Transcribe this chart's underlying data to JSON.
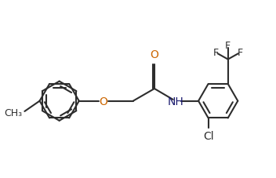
{
  "bg_color": "#ffffff",
  "line_color": "#2d2d2d",
  "label_color_O": "#cc6600",
  "label_color_N": "#1a1a6e",
  "label_color_Cl": "#2d2d2d",
  "label_color_F": "#2d2d2d",
  "linewidth": 1.5,
  "fontsize": 9.5,
  "fig_width": 3.52,
  "fig_height": 2.28,
  "dpi": 100,
  "xlim": [
    0,
    10
  ],
  "ylim": [
    0,
    6.5
  ]
}
